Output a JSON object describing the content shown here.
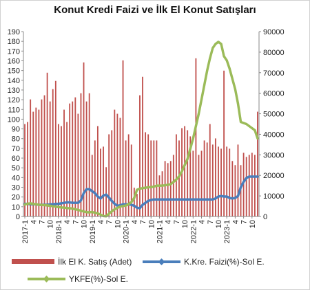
{
  "chart_data": {
    "type": "bar",
    "title": "Konut Kredi Faizi ve İlk El Konut Satışları",
    "xlabel": "",
    "ylabel_left": "",
    "ylabel_right": "",
    "ylim_left": [
      0,
      190
    ],
    "ylim_right": [
      0,
      90000
    ],
    "left_ticks": [
      0,
      10,
      20,
      30,
      40,
      50,
      60,
      70,
      80,
      90,
      100,
      110,
      120,
      130,
      140,
      150,
      160,
      170,
      180,
      190
    ],
    "right_ticks": [
      0,
      10000,
      20000,
      30000,
      40000,
      50000,
      60000,
      70000,
      80000,
      90000
    ],
    "x_tick_labels": [
      {
        "i": 0,
        "label": "2017-1"
      },
      {
        "i": 3,
        "label": "4"
      },
      {
        "i": 6,
        "label": "7"
      },
      {
        "i": 9,
        "label": "10"
      },
      {
        "i": 12,
        "label": "2018-1"
      },
      {
        "i": 15,
        "label": "4"
      },
      {
        "i": 18,
        "label": "7"
      },
      {
        "i": 21,
        "label": "10"
      },
      {
        "i": 24,
        "label": "2019-1"
      },
      {
        "i": 27,
        "label": "4"
      },
      {
        "i": 30,
        "label": "7"
      },
      {
        "i": 33,
        "label": "10"
      },
      {
        "i": 36,
        "label": "2020-1"
      },
      {
        "i": 39,
        "label": "4"
      },
      {
        "i": 42,
        "label": "7"
      },
      {
        "i": 45,
        "label": "10"
      },
      {
        "i": 48,
        "label": "2021-1"
      },
      {
        "i": 51,
        "label": "4"
      },
      {
        "i": 54,
        "label": "7"
      },
      {
        "i": 57,
        "label": "10"
      },
      {
        "i": 60,
        "label": "2022-1"
      },
      {
        "i": 63,
        "label": "4"
      },
      {
        "i": 66,
        "label": "7"
      },
      {
        "i": 69,
        "label": "10"
      },
      {
        "i": 72,
        "label": "2023-1"
      },
      {
        "i": 75,
        "label": "4"
      },
      {
        "i": 78,
        "label": "7"
      },
      {
        "i": 81,
        "label": "10"
      }
    ],
    "series": [
      {
        "name": "İlk El K. Satış (Adet)",
        "type": "bar",
        "axis": "right",
        "color": "#c0504d",
        "values": [
          45000,
          46000,
          57000,
          51000,
          53000,
          52000,
          57000,
          59000,
          70000,
          56000,
          62000,
          66000,
          45000,
          44000,
          52000,
          46000,
          55000,
          56000,
          58000,
          50000,
          60000,
          75000,
          56000,
          60000,
          30000,
          37000,
          44000,
          33000,
          34000,
          24000,
          40000,
          42000,
          52000,
          50000,
          48000,
          76000,
          37000,
          40000,
          35000,
          14000,
          11000,
          59000,
          68000,
          41000,
          40000,
          37000,
          37000,
          37000,
          20000,
          22000,
          27000,
          26000,
          27000,
          30000,
          40000,
          37000,
          43000,
          44000,
          42000,
          39000,
          32000,
          77000,
          30000,
          32000,
          37000,
          36000,
          45000,
          35000,
          38000,
          34000,
          33000,
          71000,
          34000,
          33000,
          27000,
          25000,
          35000,
          25000,
          31000,
          29000,
          30000,
          31000,
          30000,
          51000
        ]
      },
      {
        "name": "K.Kre. Faizi(%)-Sol E.",
        "type": "line",
        "axis": "left",
        "color": "#4a7ebb",
        "values": [
          13.0,
          13.0,
          12.5,
          12.5,
          12.5,
          12.0,
          12.0,
          12.0,
          12.0,
          12.5,
          12.5,
          13.0,
          13.0,
          13.5,
          14.0,
          14.5,
          14.5,
          14.0,
          14.0,
          14.0,
          16.5,
          24.0,
          28.0,
          28.0,
          26.0,
          24.0,
          20.5,
          18.5,
          21.5,
          22.5,
          19.5,
          16.0,
          13.0,
          11.0,
          11.5,
          12.5,
          12.5,
          12.5,
          12.0,
          11.0,
          9.0,
          8.5,
          12.0,
          14.0,
          16.0,
          17.0,
          17.5,
          17.5,
          17.5,
          17.5,
          17.5,
          17.5,
          17.5,
          17.5,
          17.5,
          17.5,
          17.5,
          17.5,
          17.5,
          17.5,
          17.5,
          17.5,
          17.5,
          17.5,
          17.5,
          17.5,
          17.5,
          17.5,
          18.5,
          20.5,
          21.0,
          20.5,
          20.5,
          19.0,
          18.5,
          19.0,
          21.0,
          30.0,
          35.5,
          39.5,
          41.0,
          41.0,
          41.0,
          41.0
        ]
      },
      {
        "name": "YKFE(%)-Sol E.",
        "type": "line",
        "axis": "right",
        "color": "#9bbb59",
        "values": [
          5800,
          6200,
          6400,
          6100,
          6000,
          5700,
          5600,
          5500,
          5400,
          5200,
          5000,
          4800,
          4600,
          4400,
          4300,
          4100,
          4000,
          3800,
          3500,
          3200,
          2800,
          2400,
          2100,
          2000,
          2200,
          1800,
          1500,
          900,
          200,
          100,
          1300,
          2500,
          3500,
          4200,
          4800,
          5100,
          5300,
          6000,
          7000,
          9000,
          13000,
          13500,
          13800,
          14000,
          14200,
          14300,
          14500,
          15000,
          15000,
          15000,
          15200,
          15400,
          15700,
          16800,
          18000,
          19500,
          22000,
          25000,
          28000,
          33000,
          38000,
          44000,
          50000,
          57000,
          64000,
          71000,
          77000,
          82000,
          84000,
          85000,
          84000,
          78000,
          76000,
          72000,
          67000,
          62000,
          55000,
          46000,
          45500,
          45000,
          44000,
          43000,
          42000,
          38000
        ]
      }
    ],
    "legend_position": "bottom",
    "grid": false
  }
}
